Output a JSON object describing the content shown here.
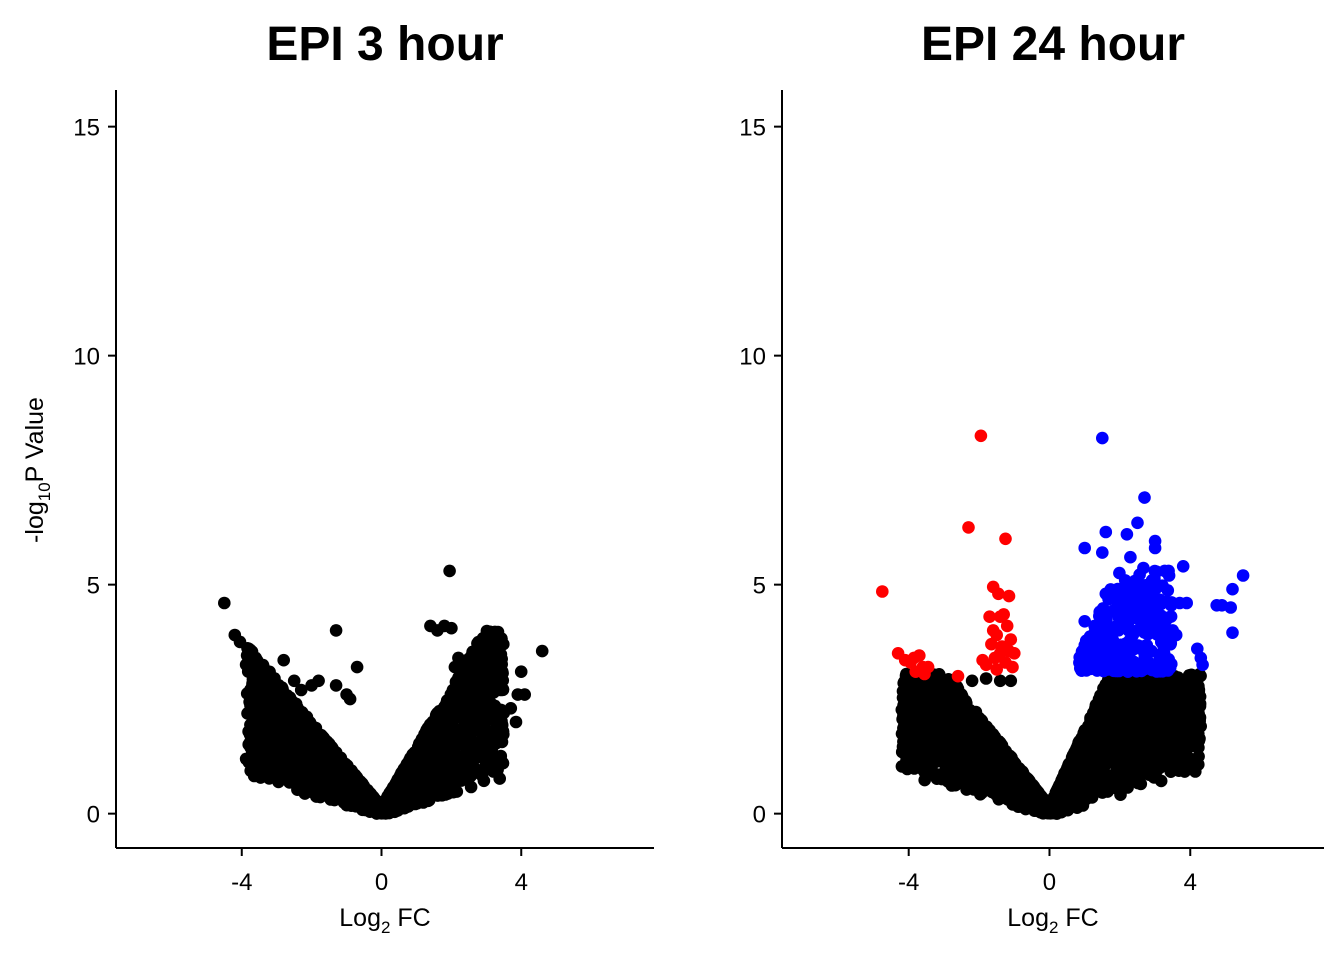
{
  "chart_data": [
    {
      "type": "scatter",
      "title": "EPI 3 hour",
      "xlabel_main": "Log",
      "xlabel_sub": "2",
      "xlabel_rest": " FC",
      "ylabel_main": "-log",
      "ylabel_sub": "10",
      "ylabel_rest": "P Value",
      "xlim": [
        -7.6,
        7.8
      ],
      "ylim": [
        -0.75,
        15.8
      ],
      "xticks": [
        {
          "value": -4,
          "label": "-4"
        },
        {
          "value": 0,
          "label": "0"
        },
        {
          "value": 4,
          "label": "4"
        }
      ],
      "yticks": [
        {
          "value": 0,
          "label": "0"
        },
        {
          "value": 5,
          "label": "5"
        },
        {
          "value": 10,
          "label": "10"
        },
        {
          "value": 15,
          "label": "15"
        }
      ],
      "grid": false,
      "cloud": {
        "color": "#000000",
        "xmin": -3.9,
        "xmax": 3.5,
        "left_slope": 0.92,
        "right_slope": 1.3,
        "ymax": 4.0,
        "count": 2600
      },
      "series": [
        {
          "color": "#000000",
          "points": [
            [
              -4.5,
              4.6
            ],
            [
              -4.2,
              3.9
            ],
            [
              -4.05,
              3.75
            ],
            [
              -3.8,
              3.6
            ],
            [
              -3.6,
              3.4
            ],
            [
              -2.8,
              3.35
            ],
            [
              -2.5,
              2.9
            ],
            [
              -2.3,
              2.7
            ],
            [
              -2.0,
              2.8
            ],
            [
              -1.8,
              2.9
            ],
            [
              -1.3,
              4.0
            ],
            [
              -1.3,
              2.8
            ],
            [
              -1.0,
              2.6
            ],
            [
              -0.7,
              3.2
            ],
            [
              -0.9,
              2.5
            ],
            [
              1.4,
              4.1
            ],
            [
              1.6,
              4.0
            ],
            [
              1.8,
              4.1
            ],
            [
              2.0,
              4.05
            ],
            [
              1.95,
              5.3
            ],
            [
              2.2,
              3.4
            ],
            [
              2.1,
              3.2
            ],
            [
              2.3,
              2.7
            ],
            [
              2.5,
              2.5
            ],
            [
              2.6,
              2.4
            ],
            [
              2.8,
              2.3
            ],
            [
              3.1,
              2.2
            ],
            [
              3.3,
              2.1
            ],
            [
              3.5,
              2.2
            ],
            [
              3.7,
              2.3
            ],
            [
              3.9,
              2.6
            ],
            [
              4.1,
              2.6
            ],
            [
              4.0,
              3.1
            ],
            [
              4.6,
              3.55
            ],
            [
              3.85,
              2.0
            ]
          ]
        }
      ]
    },
    {
      "type": "scatter",
      "title": "EPI 24 hour",
      "xlabel_main": "Log",
      "xlabel_sub": "2",
      "xlabel_rest": " FC",
      "xlim": [
        -7.6,
        7.8
      ],
      "ylim": [
        -0.75,
        15.8
      ],
      "xticks": [
        {
          "value": -4,
          "label": "-4"
        },
        {
          "value": 0,
          "label": "0"
        },
        {
          "value": 4,
          "label": "4"
        }
      ],
      "yticks": [
        {
          "value": 0,
          "label": "0"
        },
        {
          "value": 5,
          "label": "5"
        },
        {
          "value": 10,
          "label": "10"
        },
        {
          "value": 15,
          "label": "15"
        }
      ],
      "grid": false,
      "cloud": {
        "color": "#000000",
        "xmin": -4.2,
        "xmax": 4.3,
        "left_slope": 1.0,
        "right_slope": 1.7,
        "ymax": 3.05,
        "count": 3000
      },
      "series": [
        {
          "color": "#000000",
          "points": [
            [
              -3.5,
              2.8
            ],
            [
              -3.2,
              2.6
            ],
            [
              -3.4,
              2.15
            ],
            [
              -3.0,
              2.0
            ],
            [
              -2.8,
              1.9
            ],
            [
              -2.5,
              2.6
            ],
            [
              -2.2,
              2.9
            ],
            [
              -1.8,
              2.95
            ],
            [
              -1.4,
              2.9
            ],
            [
              -1.1,
              2.9
            ],
            [
              1.1,
              0.8
            ],
            [
              1.3,
              0.6
            ],
            [
              1.5,
              0.5
            ],
            [
              2.0,
              0.75
            ],
            [
              2.5,
              1.2
            ],
            [
              3.1,
              1.55
            ],
            [
              3.4,
              1.3
            ],
            [
              3.6,
              1.8
            ],
            [
              3.8,
              2.3
            ],
            [
              3.9,
              2.7
            ],
            [
              4.0,
              2.5
            ],
            [
              4.2,
              2.8
            ],
            [
              4.1,
              2.2
            ],
            [
              2.6,
              0.95
            ],
            [
              3.7,
              1.9
            ]
          ]
        },
        {
          "color": "#ff0000",
          "points": [
            [
              -4.75,
              4.85
            ],
            [
              -4.3,
              3.5
            ],
            [
              -4.1,
              3.35
            ],
            [
              -3.95,
              3.3
            ],
            [
              -3.85,
              3.4
            ],
            [
              -3.7,
              3.45
            ],
            [
              -3.6,
              3.2
            ],
            [
              -3.55,
              3.05
            ],
            [
              -3.8,
              3.1
            ],
            [
              -3.45,
              3.2
            ],
            [
              -2.6,
              3.0
            ],
            [
              -2.3,
              6.25
            ],
            [
              -1.95,
              8.25
            ],
            [
              -1.25,
              6.0
            ],
            [
              -1.6,
              4.95
            ],
            [
              -1.45,
              4.8
            ],
            [
              -1.15,
              4.75
            ],
            [
              -1.9,
              3.35
            ],
            [
              -1.8,
              3.25
            ],
            [
              -1.7,
              4.3
            ],
            [
              -1.3,
              4.35
            ],
            [
              -1.4,
              4.3
            ],
            [
              -1.6,
              4.0
            ],
            [
              -1.5,
              3.9
            ],
            [
              -1.2,
              4.1
            ],
            [
              -1.65,
              3.7
            ],
            [
              -1.4,
              3.5
            ],
            [
              -1.25,
              3.3
            ],
            [
              -1.0,
              3.5
            ],
            [
              -1.1,
              3.8
            ],
            [
              -1.35,
              3.65
            ],
            [
              -1.55,
              3.4
            ],
            [
              -1.15,
              3.55
            ],
            [
              -1.05,
              3.2
            ],
            [
              -1.5,
              3.15
            ]
          ]
        },
        {
          "color": "#0000ff",
          "points": [
            [
              1.5,
              8.2
            ],
            [
              2.7,
              6.9
            ],
            [
              2.5,
              6.35
            ],
            [
              2.2,
              6.1
            ],
            [
              1.6,
              6.15
            ],
            [
              3.0,
              5.95
            ],
            [
              1.0,
              5.8
            ],
            [
              1.5,
              5.7
            ],
            [
              2.3,
              5.6
            ],
            [
              3.0,
              5.8
            ],
            [
              3.8,
              5.4
            ],
            [
              5.5,
              5.2
            ],
            [
              5.2,
              4.9
            ],
            [
              4.75,
              4.55
            ],
            [
              4.9,
              4.55
            ],
            [
              5.15,
              4.5
            ],
            [
              5.2,
              3.95
            ],
            [
              3.4,
              5.2
            ],
            [
              1.6,
              4.8
            ],
            [
              1.9,
              4.7
            ],
            [
              3.7,
              4.6
            ],
            [
              3.9,
              4.6
            ],
            [
              4.2,
              3.6
            ],
            [
              4.3,
              3.4
            ],
            [
              4.35,
              3.25
            ],
            [
              3.6,
              3.9
            ],
            [
              3.5,
              4.0
            ],
            [
              1.0,
              4.2
            ],
            [
              1.1,
              3.6
            ],
            [
              1.2,
              3.5
            ],
            [
              0.9,
              3.25
            ],
            [
              0.95,
              3.15
            ]
          ]
        }
      ],
      "blue_cluster": {
        "color": "#0000ff",
        "xmin": 0.85,
        "xmax": 3.5,
        "ymin": 3.1,
        "ymax": 5.4,
        "count": 320
      }
    }
  ]
}
